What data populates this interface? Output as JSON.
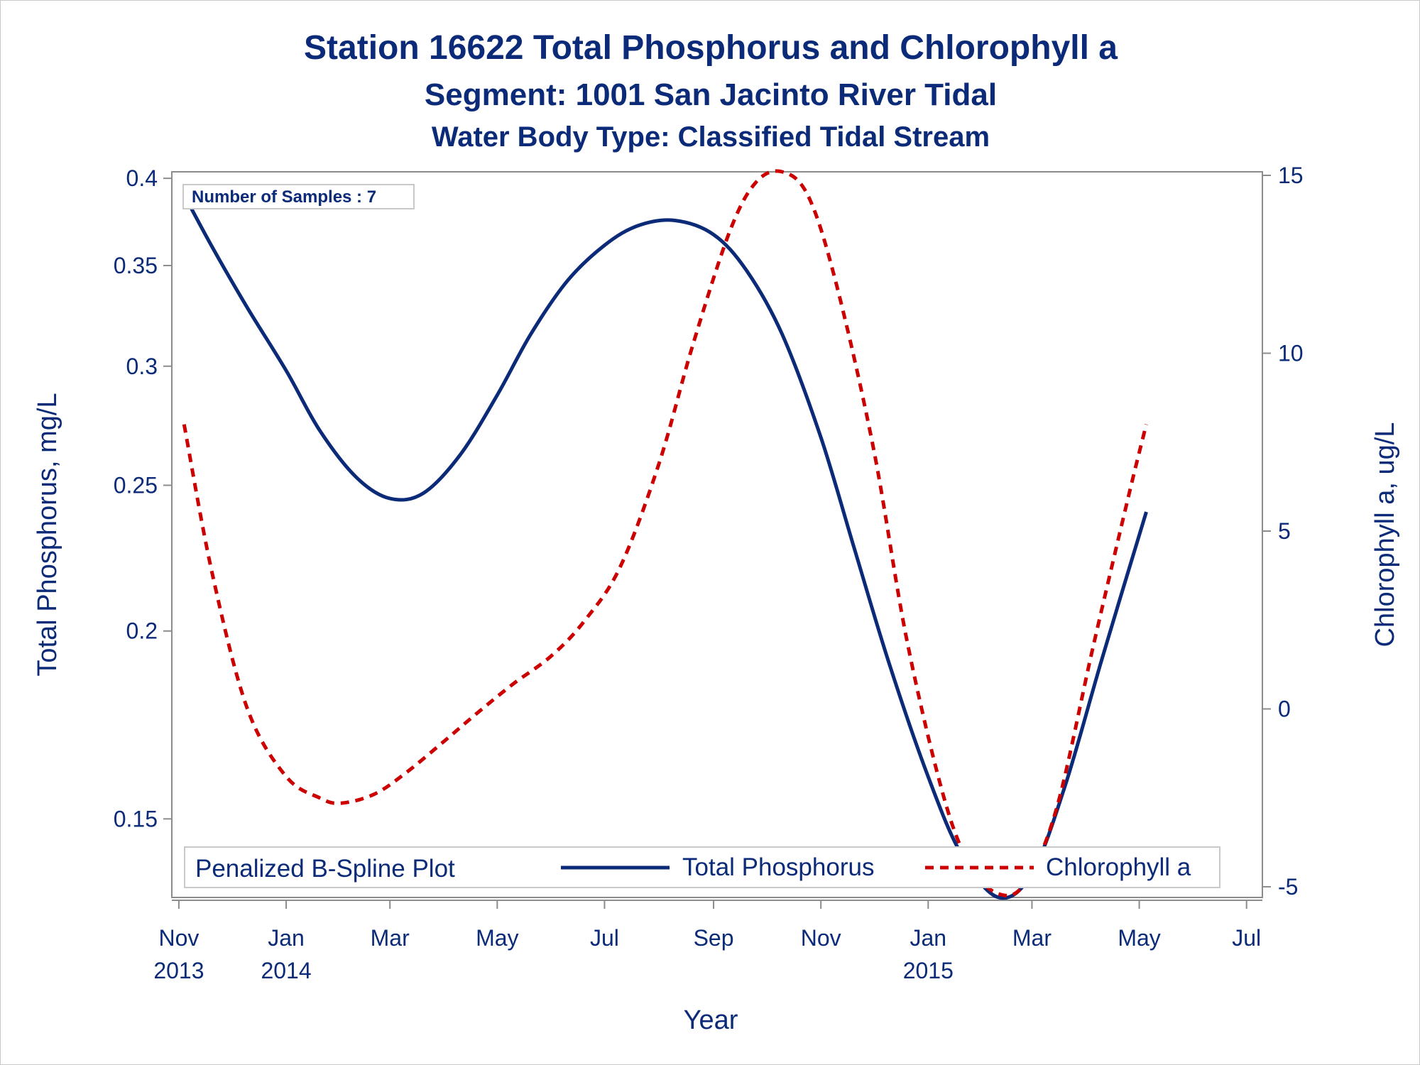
{
  "chart_data": {
    "type": "line",
    "title": "Station 16622  Total Phosphorus and Chlorophyll a",
    "subtitle": "Segment: 1001  San Jacinto River Tidal",
    "subtitle2": "Water Body Type: Classified Tidal Stream",
    "xlabel": "Year",
    "ylabel_left": "Total Phosphorus, mg/L",
    "ylabel_right": "Chlorophyll a, ug/L",
    "y_left_scale": "log",
    "y_left_ticks": [
      0.15,
      0.2,
      0.25,
      0.3,
      0.35,
      0.4
    ],
    "y_left_tick_labels": [
      "0.15",
      "0.2",
      "0.25",
      "0.3",
      "0.35",
      "0.4"
    ],
    "y_left_range": [
      0.133,
      0.404
    ],
    "y_right_ticks": [
      -5,
      0,
      5,
      10,
      15
    ],
    "y_right_range": [
      -5.3,
      15.1
    ],
    "x_range": [
      "2013-10-28",
      "2015-07-10"
    ],
    "x_ticks": [
      {
        "date": "2013-11-01",
        "line1": "Nov",
        "line2": "2013"
      },
      {
        "date": "2014-01-01",
        "line1": "Jan",
        "line2": "2014"
      },
      {
        "date": "2014-03-01",
        "line1": "Mar",
        "line2": ""
      },
      {
        "date": "2014-05-01",
        "line1": "May",
        "line2": ""
      },
      {
        "date": "2014-07-01",
        "line1": "Jul",
        "line2": ""
      },
      {
        "date": "2014-09-01",
        "line1": "Sep",
        "line2": ""
      },
      {
        "date": "2014-11-01",
        "line1": "Nov",
        "line2": ""
      },
      {
        "date": "2015-01-01",
        "line1": "Jan",
        "line2": "2015"
      },
      {
        "date": "2015-03-01",
        "line1": "Mar",
        "line2": ""
      },
      {
        "date": "2015-05-01",
        "line1": "May",
        "line2": ""
      },
      {
        "date": "2015-07-01",
        "line1": "Jul",
        "line2": ""
      }
    ],
    "inset_label": "Number of Samples : 7",
    "legend_title": "Penalized B-Spline Plot",
    "legend_position": "bottom-inside",
    "grid": false,
    "series": [
      {
        "name": "Total Phosphorus",
        "axis": "left",
        "color": "#0b2a78",
        "dash": "solid",
        "points": [
          [
            "2013-11-04",
            0.39
          ],
          [
            "2013-11-20",
            0.36
          ],
          [
            "2013-12-10",
            0.328
          ],
          [
            "2014-01-01",
            0.298
          ],
          [
            "2014-01-20",
            0.272
          ],
          [
            "2014-02-10",
            0.253
          ],
          [
            "2014-03-01",
            0.245
          ],
          [
            "2014-03-20",
            0.247
          ],
          [
            "2014-04-10",
            0.262
          ],
          [
            "2014-05-01",
            0.287
          ],
          [
            "2014-05-20",
            0.315
          ],
          [
            "2014-06-10",
            0.342
          ],
          [
            "2014-07-01",
            0.361
          ],
          [
            "2014-07-20",
            0.372
          ],
          [
            "2014-08-10",
            0.375
          ],
          [
            "2014-09-01",
            0.367
          ],
          [
            "2014-09-20",
            0.347
          ],
          [
            "2014-10-10",
            0.315
          ],
          [
            "2014-11-01",
            0.269
          ],
          [
            "2014-11-20",
            0.227
          ],
          [
            "2014-12-10",
            0.19
          ],
          [
            "2015-01-01",
            0.16
          ],
          [
            "2015-01-20",
            0.142
          ],
          [
            "2015-02-10",
            0.133
          ],
          [
            "2015-03-01",
            0.138
          ],
          [
            "2015-03-20",
            0.158
          ],
          [
            "2015-04-10",
            0.192
          ],
          [
            "2015-05-05",
            0.24
          ]
        ]
      },
      {
        "name": "Chlorophyll a",
        "axis": "right",
        "color": "#cc0000",
        "dash": "dashed",
        "points": [
          [
            "2013-11-04",
            8.0
          ],
          [
            "2013-11-20",
            3.8
          ],
          [
            "2013-12-10",
            0.0
          ],
          [
            "2014-01-01",
            -1.9
          ],
          [
            "2014-01-20",
            -2.5
          ],
          [
            "2014-02-01",
            -2.65
          ],
          [
            "2014-02-20",
            -2.4
          ],
          [
            "2014-03-10",
            -1.8
          ],
          [
            "2014-04-01",
            -0.9
          ],
          [
            "2014-04-20",
            -0.1
          ],
          [
            "2014-05-10",
            0.7
          ],
          [
            "2014-06-01",
            1.5
          ],
          [
            "2014-06-20",
            2.5
          ],
          [
            "2014-07-10",
            4.0
          ],
          [
            "2014-08-01",
            6.9
          ],
          [
            "2014-08-20",
            10.2
          ],
          [
            "2014-09-10",
            13.4
          ],
          [
            "2014-09-25",
            14.8
          ],
          [
            "2014-10-10",
            15.1
          ],
          [
            "2014-10-25",
            14.4
          ],
          [
            "2014-11-10",
            11.9
          ],
          [
            "2014-12-01",
            7.3
          ],
          [
            "2014-12-20",
            1.9
          ],
          [
            "2015-01-10",
            -2.5
          ],
          [
            "2015-01-25",
            -4.4
          ],
          [
            "2015-02-10",
            -5.2
          ],
          [
            "2015-02-25",
            -4.9
          ],
          [
            "2015-03-15",
            -2.8
          ],
          [
            "2015-04-05",
            1.8
          ],
          [
            "2015-04-25",
            6.0
          ],
          [
            "2015-05-05",
            8.0
          ]
        ]
      }
    ]
  }
}
